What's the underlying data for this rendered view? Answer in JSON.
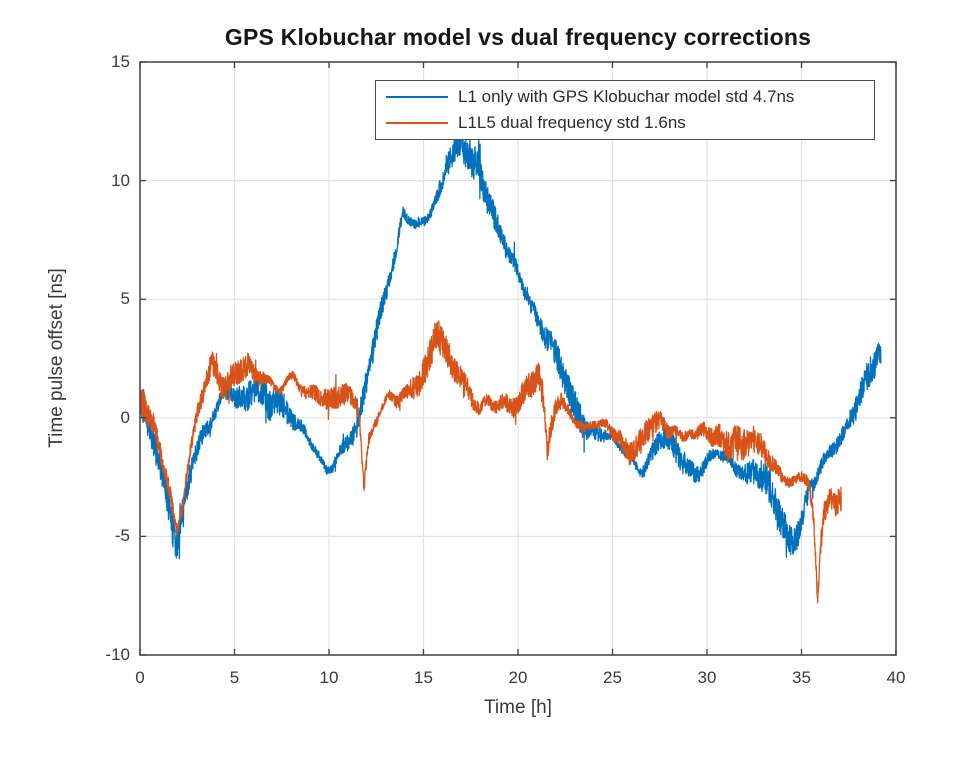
{
  "chart_data": {
    "type": "line",
    "title": "GPS Klobuchar model vs dual frequency corrections",
    "xlabel": "Time [h]",
    "ylabel": "Time pulse offset [ns]",
    "xlim": [
      0,
      40
    ],
    "ylim": [
      -10,
      15
    ],
    "xticks": [
      0,
      5,
      10,
      15,
      20,
      25,
      30,
      35,
      40
    ],
    "yticks": [
      -10,
      -5,
      0,
      5,
      10,
      15
    ],
    "grid": true,
    "legend_position": "inside-top-center",
    "axes_color": "#3f3f3f",
    "grid_color": "#e2e2e2",
    "text_color": "#3a3a3a",
    "title_color": "#171717",
    "background": "#ffffff",
    "series": [
      {
        "name": "L1 only with GPS Klobuchar model std 4.7ns",
        "color": "#0072BD",
        "std_ns": 4.7,
        "noise_amplitude": 0.55,
        "trend": [
          [
            0,
            0.4
          ],
          [
            0.3,
            -0.3
          ],
          [
            0.7,
            -1
          ],
          [
            1.1,
            -2.2
          ],
          [
            1.5,
            -3.6
          ],
          [
            1.9,
            -5.2
          ],
          [
            2.1,
            -4.7
          ],
          [
            2.4,
            -3.2
          ],
          [
            2.8,
            -1.8
          ],
          [
            3.2,
            -1.1
          ],
          [
            3.6,
            -0.6
          ],
          [
            4,
            0.3
          ],
          [
            4.4,
            1.2
          ],
          [
            4.8,
            1.3
          ],
          [
            5.2,
            0.9
          ],
          [
            5.6,
            0.7
          ],
          [
            6,
            1.2
          ],
          [
            6.4,
            1
          ],
          [
            6.8,
            0.6
          ],
          [
            7.2,
            0.8
          ],
          [
            7.6,
            0.6
          ],
          [
            8,
            0.1
          ],
          [
            8.4,
            -0.4
          ],
          [
            8.8,
            -0.8
          ],
          [
            9.2,
            -1.4
          ],
          [
            9.6,
            -1.9
          ],
          [
            9.9,
            -2.1
          ],
          [
            10.2,
            -1.9
          ],
          [
            10.6,
            -1.3
          ],
          [
            11,
            -1
          ],
          [
            11.4,
            -0.8
          ],
          [
            11.7,
            0.2
          ],
          [
            12,
            1.6
          ],
          [
            12.4,
            3.2
          ],
          [
            12.8,
            4.8
          ],
          [
            13.2,
            6
          ],
          [
            13.6,
            7.2
          ],
          [
            13.9,
            8.6
          ],
          [
            14.2,
            8.3
          ],
          [
            14.6,
            7.9
          ],
          [
            15,
            8.3
          ],
          [
            15.4,
            8.8
          ],
          [
            15.8,
            9.6
          ],
          [
            16.2,
            10.6
          ],
          [
            16.6,
            11.2
          ],
          [
            17,
            11.5
          ],
          [
            17.3,
            11
          ],
          [
            17.6,
            10.6
          ],
          [
            17.9,
            10.8
          ],
          [
            18.2,
            9.8
          ],
          [
            18.6,
            8.9
          ],
          [
            19,
            7.9
          ],
          [
            19.4,
            7
          ],
          [
            19.8,
            6.3
          ],
          [
            20.2,
            5.6
          ],
          [
            20.6,
            4.9
          ],
          [
            21,
            4.3
          ],
          [
            21.4,
            3.7
          ],
          [
            21.8,
            3
          ],
          [
            22.2,
            2.2
          ],
          [
            22.6,
            1.2
          ],
          [
            23,
            0.4
          ],
          [
            23.4,
            -0.1
          ],
          [
            23.8,
            -0.4
          ],
          [
            24.2,
            -0.5
          ],
          [
            24.6,
            -0.7
          ],
          [
            25,
            -1
          ],
          [
            25.4,
            -1.3
          ],
          [
            25.8,
            -1.6
          ],
          [
            26.2,
            -1.9
          ],
          [
            26.6,
            -2.1
          ],
          [
            27,
            -1.6
          ],
          [
            27.4,
            -1
          ],
          [
            27.8,
            -0.9
          ],
          [
            28.2,
            -1.3
          ],
          [
            28.6,
            -1.7
          ],
          [
            29,
            -2
          ],
          [
            29.4,
            -2.2
          ],
          [
            29.8,
            -2
          ],
          [
            30.2,
            -1.7
          ],
          [
            30.6,
            -1.6
          ],
          [
            31,
            -1.8
          ],
          [
            31.4,
            -2
          ],
          [
            31.8,
            -2.2
          ],
          [
            32.2,
            -2.3
          ],
          [
            32.6,
            -2.1
          ],
          [
            33,
            -2.6
          ],
          [
            33.4,
            -3.3
          ],
          [
            33.8,
            -4.2
          ],
          [
            34.2,
            -4.9
          ],
          [
            34.5,
            -5.2
          ],
          [
            34.8,
            -4.7
          ],
          [
            35.1,
            -3.9
          ],
          [
            35.4,
            -3.1
          ],
          [
            35.7,
            -2.7
          ],
          [
            36,
            -2.2
          ],
          [
            36.4,
            -1.7
          ],
          [
            36.8,
            -1.2
          ],
          [
            37.2,
            -0.6
          ],
          [
            37.6,
            0.1
          ],
          [
            38,
            0.8
          ],
          [
            38.4,
            1.5
          ],
          [
            38.8,
            2.1
          ],
          [
            39.2,
            2.7
          ]
        ]
      },
      {
        "name": "L1L5 dual frequency std 1.6ns",
        "color": "#D95319",
        "std_ns": 1.6,
        "noise_amplitude": 0.5,
        "trend": [
          [
            0,
            0.7
          ],
          [
            0.4,
            0.2
          ],
          [
            0.8,
            -0.5
          ],
          [
            1.2,
            -1.6
          ],
          [
            1.6,
            -3.1
          ],
          [
            1.95,
            -4.9
          ],
          [
            2.2,
            -3.9
          ],
          [
            2.5,
            -2.4
          ],
          [
            2.8,
            -1
          ],
          [
            3.1,
            0.4
          ],
          [
            3.5,
            1.6
          ],
          [
            3.8,
            2.4
          ],
          [
            4.1,
            1.9
          ],
          [
            4.5,
            1.4
          ],
          [
            4.9,
            1.6
          ],
          [
            5.3,
            1.9
          ],
          [
            5.7,
            2.1
          ],
          [
            6.1,
            1.7
          ],
          [
            6.5,
            1.9
          ],
          [
            6.9,
            1.6
          ],
          [
            7.3,
            1.2
          ],
          [
            7.7,
            1.4
          ],
          [
            8.1,
            1.6
          ],
          [
            8.5,
            1.2
          ],
          [
            8.9,
            1
          ],
          [
            9.3,
            1.2
          ],
          [
            9.7,
            0.9
          ],
          [
            10.1,
            0.7
          ],
          [
            10.5,
            0.9
          ],
          [
            10.9,
            0.8
          ],
          [
            11.3,
            0.7
          ],
          [
            11.6,
            0.3
          ],
          [
            11.85,
            -2.9
          ],
          [
            12.1,
            -0.9
          ],
          [
            12.4,
            -0.1
          ],
          [
            12.8,
            0.5
          ],
          [
            13.2,
            0.8
          ],
          [
            13.6,
            0.6
          ],
          [
            14,
            0.9
          ],
          [
            14.4,
            1.3
          ],
          [
            14.8,
            1.7
          ],
          [
            15.2,
            2.3
          ],
          [
            15.7,
            3.7
          ],
          [
            16,
            3
          ],
          [
            16.4,
            2.3
          ],
          [
            16.8,
            1.9
          ],
          [
            17.2,
            1.5
          ],
          [
            17.6,
            0.9
          ],
          [
            18,
            0.5
          ],
          [
            18.4,
            0.7
          ],
          [
            18.8,
            0.4
          ],
          [
            19.2,
            0.5
          ],
          [
            19.6,
            0.4
          ],
          [
            20,
            0.7
          ],
          [
            20.4,
            1.3
          ],
          [
            20.8,
            1.7
          ],
          [
            21.1,
            1.8
          ],
          [
            21.35,
            0.6
          ],
          [
            21.55,
            -1.6
          ],
          [
            21.75,
            -0.4
          ],
          [
            22,
            0.3
          ],
          [
            22.3,
            0.6
          ],
          [
            22.7,
            0.4
          ],
          [
            23.1,
            -0.1
          ],
          [
            23.5,
            -0.4
          ],
          [
            23.9,
            -0.2
          ],
          [
            24.3,
            -0.5
          ],
          [
            24.7,
            -0.4
          ],
          [
            25.1,
            -0.7
          ],
          [
            25.5,
            -1
          ],
          [
            25.9,
            -1.3
          ],
          [
            26.3,
            -1.1
          ],
          [
            26.7,
            -0.7
          ],
          [
            27.1,
            -0.4
          ],
          [
            27.5,
            -0.3
          ],
          [
            27.9,
            -0.5
          ],
          [
            28.3,
            -0.4
          ],
          [
            28.7,
            -0.7
          ],
          [
            29.1,
            -0.5
          ],
          [
            29.5,
            -0.8
          ],
          [
            29.9,
            -0.6
          ],
          [
            30.3,
            -0.9
          ],
          [
            30.7,
            -0.8
          ],
          [
            31.1,
            -1
          ],
          [
            31.5,
            -0.9
          ],
          [
            31.9,
            -1.1
          ],
          [
            32.3,
            -1
          ],
          [
            32.7,
            -1.2
          ],
          [
            33.1,
            -1.6
          ],
          [
            33.5,
            -2
          ],
          [
            33.9,
            -2.3
          ],
          [
            34.3,
            -2.5
          ],
          [
            34.7,
            -2.7
          ],
          [
            35.1,
            -2.5
          ],
          [
            35.4,
            -2.9
          ],
          [
            35.65,
            -4.5
          ],
          [
            35.85,
            -7.9
          ],
          [
            36,
            -5.6
          ],
          [
            36.2,
            -3.9
          ],
          [
            36.5,
            -3.3
          ],
          [
            36.8,
            -3.6
          ],
          [
            37.1,
            -3.3
          ]
        ]
      }
    ]
  }
}
